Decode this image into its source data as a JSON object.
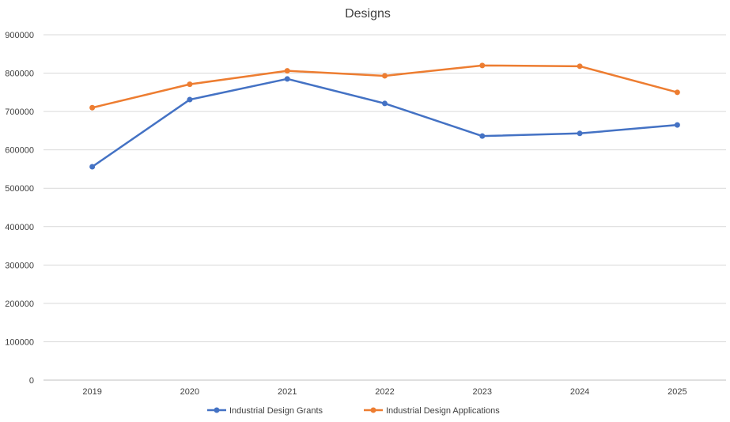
{
  "chart_data": {
    "type": "line",
    "title": "Designs",
    "xlabel": "",
    "ylabel": "",
    "categories": [
      "2019",
      "2020",
      "2021",
      "2022",
      "2023",
      "2024",
      "2025"
    ],
    "ylim": [
      0,
      900000
    ],
    "yticks": [
      "0",
      "100000",
      "200000",
      "300000",
      "400000",
      "500000",
      "600000",
      "700000",
      "800000",
      "900000"
    ],
    "grid": true,
    "legend": "bottom",
    "series": [
      {
        "name": "Industrial Design Grants",
        "color": "#4472C4",
        "values": [
          556000,
          731000,
          785000,
          721000,
          636000,
          643000,
          665000
        ]
      },
      {
        "name": "Industrial Design Applications",
        "color": "#ED7D31",
        "values": [
          710000,
          771000,
          806000,
          793000,
          820000,
          818000,
          750000
        ]
      }
    ]
  }
}
